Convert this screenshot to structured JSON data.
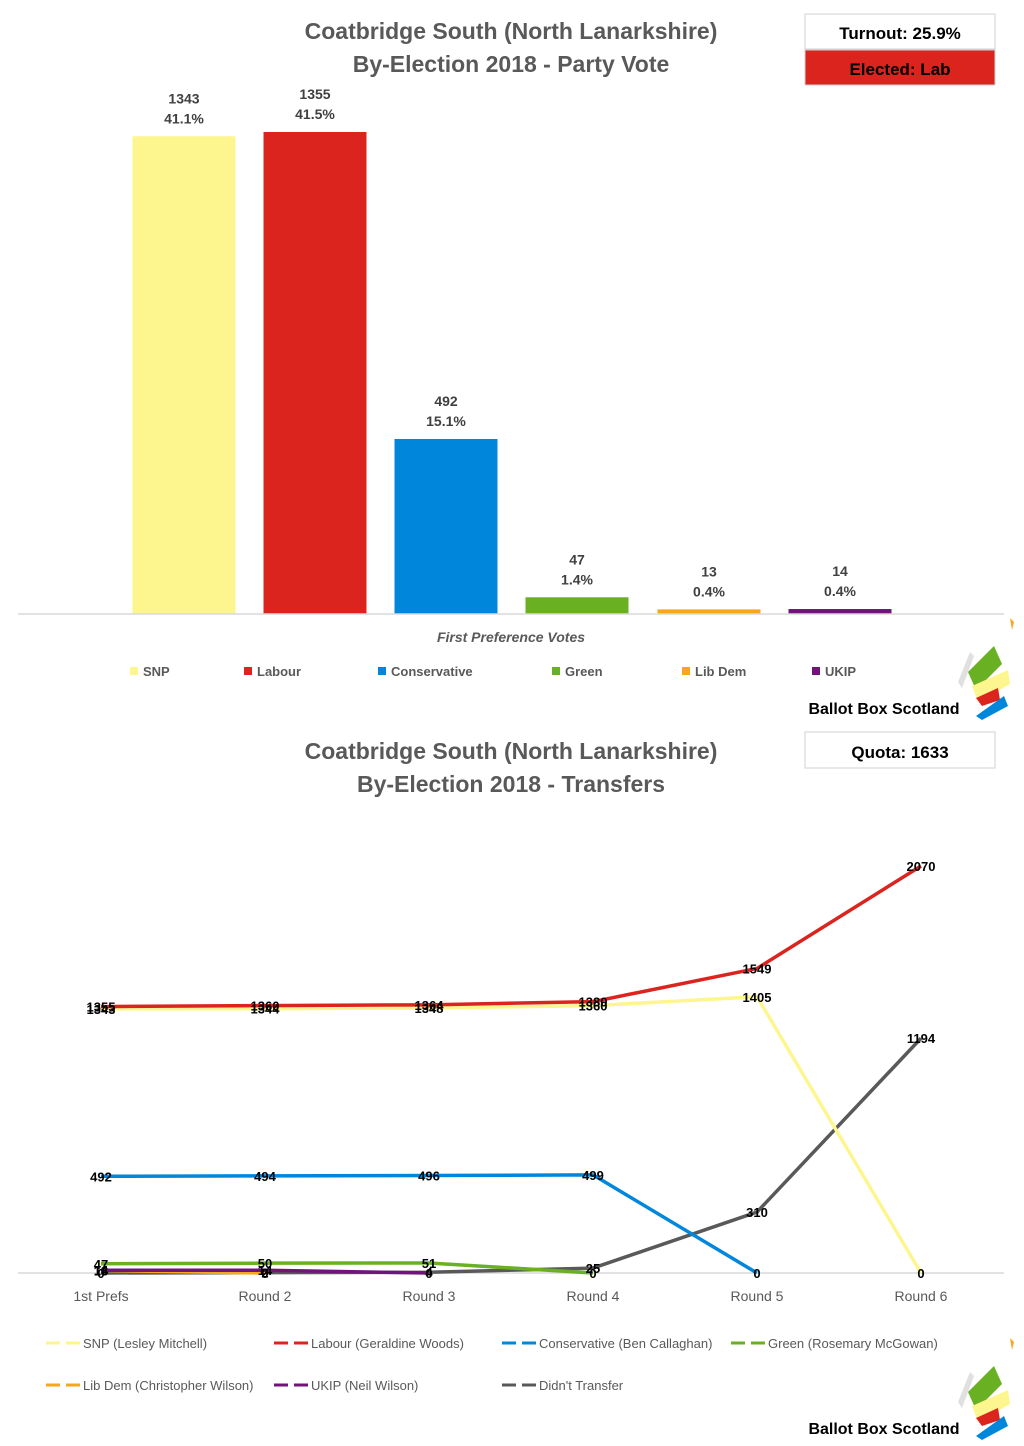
{
  "chart_data": [
    {
      "type": "bar",
      "title": "Coatbridge South (North Lanarkshire)",
      "subtitle": "By-Election 2018 - Party Vote",
      "xlabel": "First Preference Votes",
      "ylabel": "",
      "ylim": [
        0,
        1400
      ],
      "grid": false,
      "legend_position": "bottom",
      "categories": [
        "SNP",
        "Labour",
        "Conservative",
        "Green",
        "Lib Dem",
        "UKIP"
      ],
      "values": [
        1343,
        1355,
        492,
        47,
        13,
        14
      ],
      "percent_labels": [
        "41.1%",
        "41.5%",
        "15.1%",
        "1.4%",
        "0.4%",
        "0.4%"
      ],
      "colors": [
        "#fdf68f",
        "#dc241f",
        "#0087dc",
        "#6ab023",
        "#faa61a",
        "#70147a"
      ],
      "info_boxes": [
        {
          "label": "Turnout: 25.9%",
          "fill": "#ffffff",
          "text_color": "#000000"
        },
        {
          "label": "Elected: Lab",
          "fill": "#dc241f",
          "text_color": "#000000"
        }
      ]
    },
    {
      "type": "line",
      "title": "Coatbridge South (North Lanarkshire)",
      "subtitle": "By-Election 2018 - Transfers",
      "xlabel": "",
      "ylabel": "",
      "ylim": [
        0,
        2070
      ],
      "grid": false,
      "legend_position": "bottom",
      "categories": [
        "1st Prefs",
        "Round 2",
        "Round 3",
        "Round 4",
        "Round 5",
        "Round 6"
      ],
      "series": [
        {
          "name": "SNP (Lesley Mitchell)",
          "color": "#fdf68f",
          "values": [
            1343,
            1344,
            1348,
            1360,
            1405,
            0
          ]
        },
        {
          "name": "Labour (Geraldine Woods)",
          "color": "#dc241f",
          "values": [
            1355,
            1360,
            1364,
            1380,
            1549,
            2070
          ]
        },
        {
          "name": "Conservative (Ben Callaghan)",
          "color": "#0087dc",
          "values": [
            492,
            494,
            496,
            499,
            0,
            null
          ]
        },
        {
          "name": "Green (Rosemary McGowan)",
          "color": "#6ab023",
          "values": [
            47,
            50,
            51,
            0,
            null,
            null
          ]
        },
        {
          "name": "Lib Dem (Christopher Wilson)",
          "color": "#faa61a",
          "values": [
            13,
            0,
            null,
            null,
            null,
            null
          ]
        },
        {
          "name": "UKIP (Neil Wilson)",
          "color": "#70147a",
          "values": [
            14,
            14,
            0,
            null,
            null,
            null
          ]
        },
        {
          "name": "Didn't Transfer",
          "color": "#595959",
          "values": [
            0,
            2,
            4,
            25,
            310,
            1194
          ]
        }
      ],
      "info_boxes": [
        {
          "label": "Quota: 1633",
          "fill": "#ffffff",
          "text_color": "#000000"
        }
      ]
    }
  ],
  "branding": {
    "text": "Ballot Box Scotland"
  }
}
